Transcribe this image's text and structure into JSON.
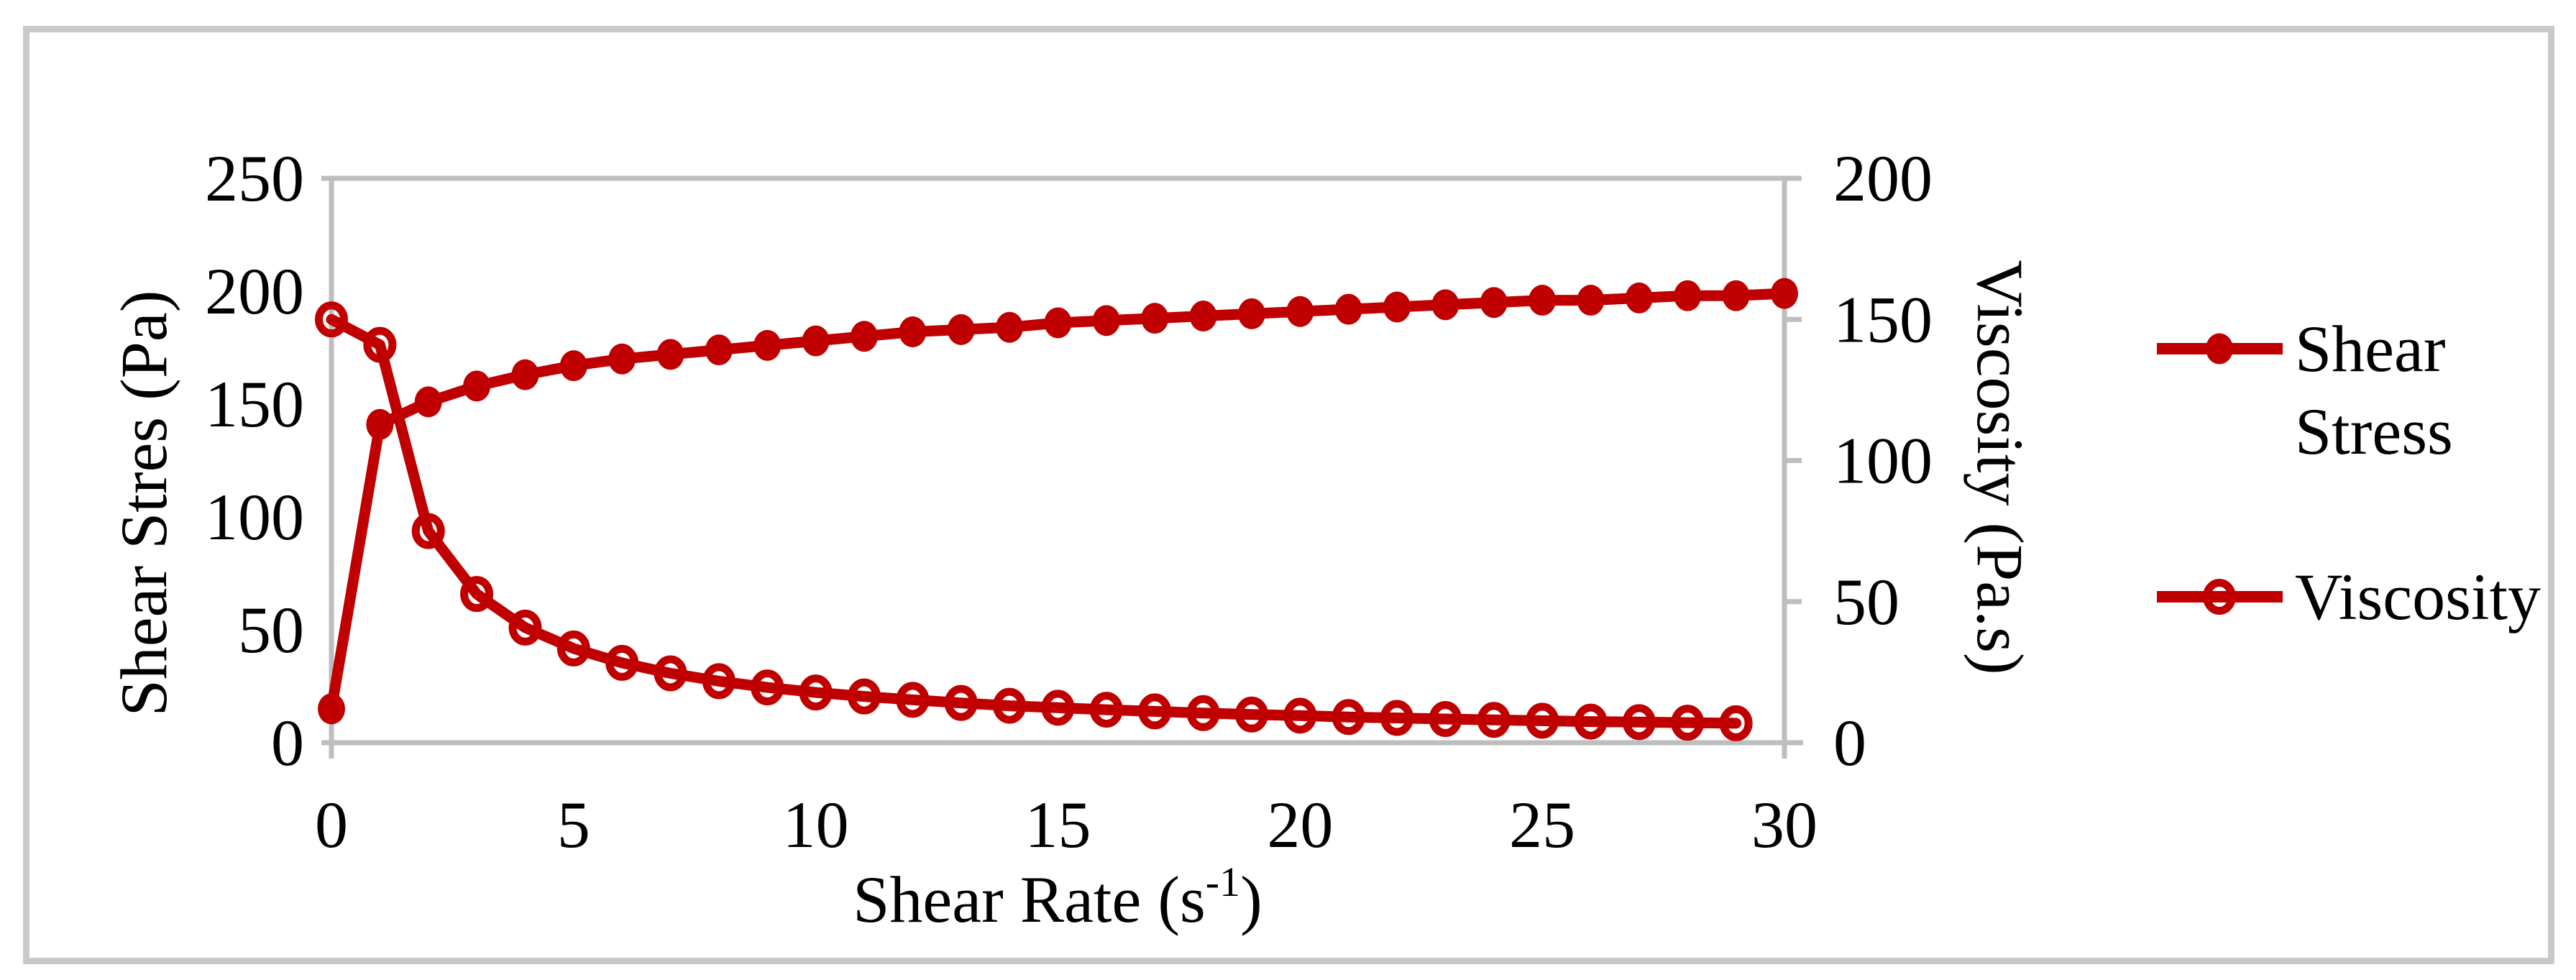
{
  "figure": {
    "background_color": "#ffffff",
    "border_color": "#c9c9c9"
  },
  "chart_data": {
    "type": "line",
    "title": "",
    "grid": false,
    "axis_color": "#bebebe",
    "series_color": "#c00000",
    "x_axis": {
      "label": "Shear Rate (s⁻¹)",
      "label_parts": {
        "pre": "Shear Rate (s",
        "sup": "-1",
        "post": ")"
      },
      "range": [
        0,
        30
      ],
      "ticks": [
        0,
        5,
        10,
        15,
        20,
        25,
        30
      ]
    },
    "y_left_axis": {
      "label": "Shear Stres (Pa)",
      "range": [
        0,
        250
      ],
      "ticks": [
        0,
        50,
        100,
        150,
        200,
        250
      ]
    },
    "y_right_axis": {
      "label": "Viscosity (Pa.s)",
      "range": [
        0,
        200
      ],
      "ticks": [
        0,
        50,
        100,
        150,
        200
      ]
    },
    "series": [
      {
        "name": "Shear Stress",
        "axis": "left",
        "color": "#c00000",
        "marker": "filled-circle",
        "x": [
          0,
          1,
          2,
          3,
          4,
          5,
          6,
          7,
          8,
          9,
          10,
          11,
          12,
          13,
          14,
          15,
          16,
          17,
          18,
          19,
          20,
          21,
          22,
          23,
          24,
          25,
          26,
          27,
          28,
          29,
          30
        ],
        "values": [
          15,
          141,
          151,
          158,
          163,
          167,
          170,
          172,
          174,
          176,
          178,
          180,
          182,
          183,
          184,
          186,
          187,
          188,
          189,
          190,
          191,
          192,
          193,
          194,
          195,
          196,
          196,
          197,
          198,
          198,
          199
        ]
      },
      {
        "name": "Viscosity",
        "axis": "right",
        "color": "#c00000",
        "marker": "open-circle",
        "x": [
          0,
          1,
          2,
          3,
          4,
          5,
          6,
          7,
          8,
          9,
          10,
          11,
          12,
          13,
          14,
          15,
          16,
          17,
          18,
          19,
          20,
          21,
          22,
          23,
          24,
          25,
          26,
          27,
          28,
          29
        ],
        "values": [
          150,
          141,
          75,
          52.7,
          40.8,
          33.4,
          28.3,
          24.6,
          21.8,
          19.6,
          17.8,
          16.4,
          15.2,
          14.1,
          13.1,
          12.4,
          11.7,
          11.1,
          10.5,
          10,
          9.6,
          9.1,
          8.8,
          8.4,
          8.1,
          7.8,
          7.5,
          7.3,
          7.1,
          6.9
        ]
      }
    ],
    "legend": {
      "position": "right",
      "items": [
        {
          "label": "Shear Stress",
          "lines": [
            "Shear",
            "Stress"
          ],
          "marker": "filled-circle"
        },
        {
          "label": "Viscosity",
          "lines": [
            "Viscosity"
          ],
          "marker": "open-circle"
        }
      ]
    }
  }
}
